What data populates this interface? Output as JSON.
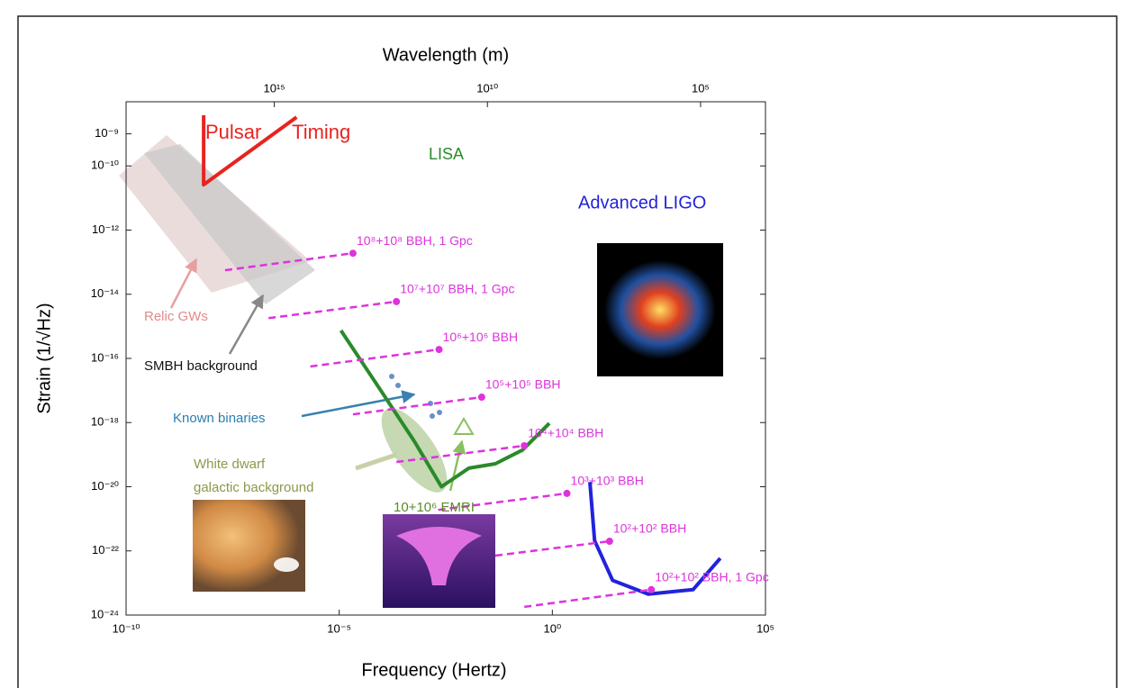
{
  "chart_data": {
    "type": "line",
    "xscale": "log",
    "yscale": "log",
    "xlabel": "Frequency (Hertz)",
    "x2label": "Wavelength (m)",
    "ylabel": "Strain (1/√Hz)",
    "xlim": [
      1e-10,
      100000.0
    ],
    "xticks": [
      {
        "value": 1e-10,
        "label": "10⁻¹⁰"
      },
      {
        "value": 1e-05,
        "label": "10⁻⁵"
      },
      {
        "value": 1,
        "label": "10⁰"
      },
      {
        "value": 100000.0,
        "label": "10⁵"
      }
    ],
    "x2lim": [
      2.998e+18,
      2998.0
    ],
    "x2ticks": [
      {
        "value": 1000000000000000.0,
        "label": "10¹⁵"
      },
      {
        "value": 10000000000.0,
        "label": "10¹⁰"
      },
      {
        "value": 100000.0,
        "label": "10⁵"
      }
    ],
    "ylim": [
      1e-24,
      1e-08
    ],
    "yticks": [
      {
        "value": 1e-09,
        "label": "10⁻⁹"
      },
      {
        "value": 1e-10,
        "label": "10⁻¹⁰"
      },
      {
        "value": 1e-12,
        "label": "10⁻¹²"
      },
      {
        "value": 1e-14,
        "label": "10⁻¹⁴"
      },
      {
        "value": 1e-16,
        "label": "10⁻¹⁶"
      },
      {
        "value": 1e-18,
        "label": "10⁻¹⁸"
      },
      {
        "value": 1e-20,
        "label": "10⁻²⁰"
      },
      {
        "value": 1e-22,
        "label": "10⁻²²"
      },
      {
        "value": 1e-24,
        "label": "10⁻²⁴"
      }
    ],
    "series": [
      {
        "name": "Pulsar Timing",
        "color": "#e8231f",
        "style": "solid",
        "x": [
          6.6e-09,
          6.6e-09,
          1e-06
        ],
        "y": [
          3.8e-09,
          2.6e-11,
          3.3e-09
        ]
      },
      {
        "name": "LISA",
        "color": "#2a8a2a",
        "style": "solid",
        "x": [
          1.1e-05,
          8.3e-05,
          0.00058,
          0.0025,
          0.011,
          0.046,
          0.2,
          0.85
        ],
        "y": [
          7.4e-16,
          1.3e-17,
          2.6e-19,
          1e-20,
          3.8e-20,
          5.2e-20,
          1.4e-19,
          9.5e-19
        ]
      },
      {
        "name": "Advanced LIGO",
        "color": "#2222dd",
        "style": "solid",
        "x": [
          7.6,
          9.8,
          26,
          178,
          2000,
          8700
        ],
        "y": [
          1.4e-20,
          2.1e-22,
          1.2e-23,
          4.5e-24,
          6.2e-24,
          5.9e-23
        ]
      },
      {
        "name": "10⁸+10⁸ BBH, 1 Gpc",
        "color": "#dd33dd",
        "style": "dashed",
        "x": [
          2.1e-08,
          2.1e-05
        ],
        "y": [
          5.6e-14,
          1.9e-13
        ]
      },
      {
        "name": "10⁷+10⁷ BBH, 1 Gpc",
        "color": "#dd33dd",
        "style": "dashed",
        "x": [
          2.2e-07,
          0.00022
        ],
        "y": [
          1.8e-15,
          5.9e-15
        ]
      },
      {
        "name": "10⁶+10⁶ BBH",
        "color": "#dd33dd",
        "style": "dashed",
        "x": [
          2.1e-06,
          0.0022
        ],
        "y": [
          5.6e-17,
          1.9e-16
        ]
      },
      {
        "name": "10⁵+10⁵ BBH",
        "color": "#dd33dd",
        "style": "dashed",
        "x": [
          2.1e-05,
          0.022
        ],
        "y": [
          1.8e-18,
          6.2e-18
        ]
      },
      {
        "name": "10⁴+10⁴ BBH",
        "color": "#dd33dd",
        "style": "dashed",
        "x": [
          0.00022,
          0.22
        ],
        "y": [
          5.9e-20,
          1.9e-19
        ]
      },
      {
        "name": "10³+10³ BBH",
        "color": "#dd33dd",
        "style": "dashed",
        "x": [
          0.0021,
          2.2
        ],
        "y": [
          1.9e-21,
          6.2e-21
        ]
      },
      {
        "name": "10²+10² BBH",
        "color": "#dd33dd",
        "style": "dashed",
        "x": [
          0.046,
          22
        ],
        "y": [
          7.1e-23,
          2e-22
        ]
      },
      {
        "name": "10²+10² BBH, 1 Gpc",
        "color": "#dd33dd",
        "style": "dashed",
        "x": [
          0.22,
          210
        ],
        "y": [
          1.8e-24,
          6.2e-24
        ]
      }
    ],
    "annotations": [
      {
        "text": "Relic GWs",
        "color": "#e08a8a"
      },
      {
        "text": "SMBH background",
        "color": "#111111"
      },
      {
        "text": "Known binaries",
        "color": "#2a7fb0"
      },
      {
        "text": "White dwarf",
        "color": "#8a9a4a"
      },
      {
        "text": "galactic background",
        "color": "#8a9a4a"
      },
      {
        "text": "10+10⁶ EMRI",
        "color": "#5a8a2a"
      }
    ]
  }
}
